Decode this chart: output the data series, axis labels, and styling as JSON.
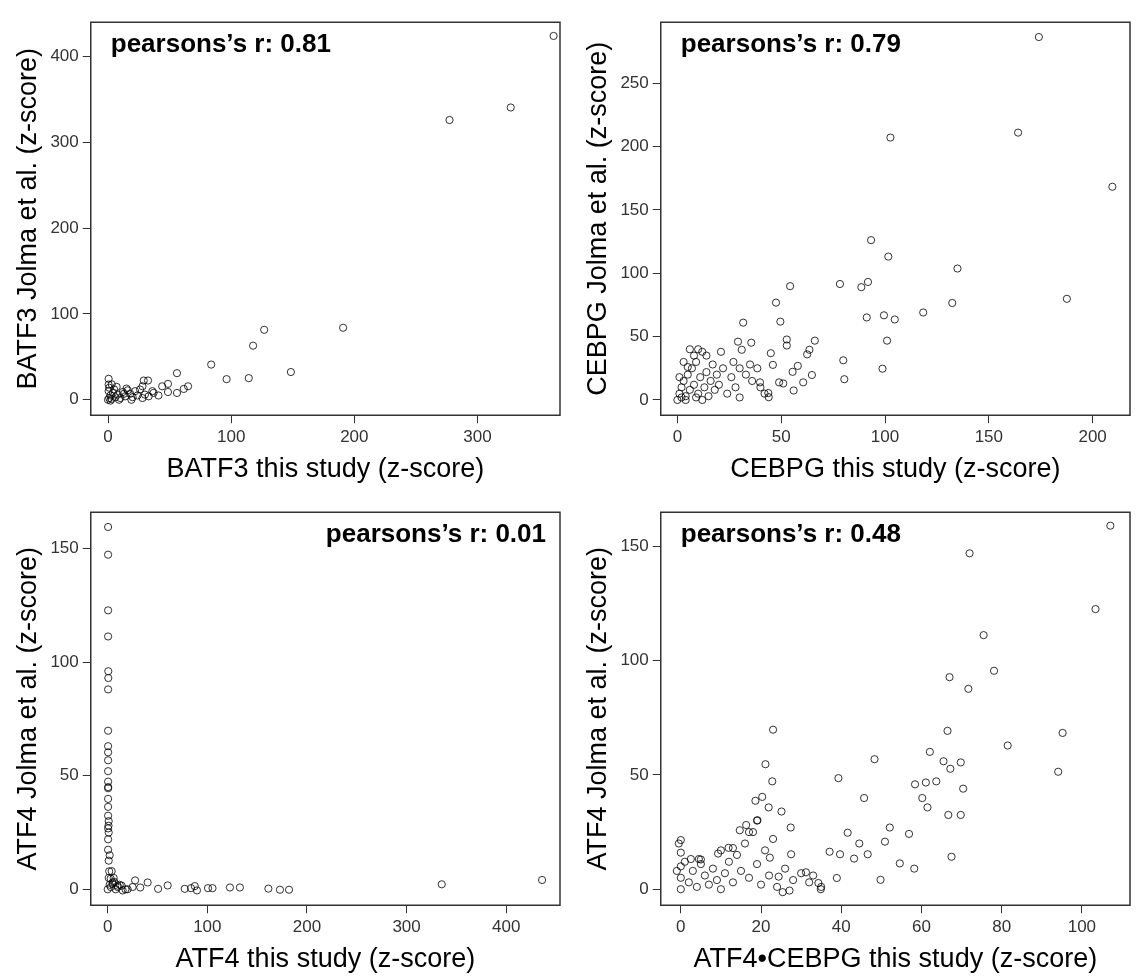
{
  "chart_data": [
    {
      "type": "scatter",
      "xlabel": "BATF3 this study (z-score)",
      "ylabel": "BATF3 Jolma et al. (z-score)",
      "annotations": [
        "pearsons’s r: 0.81"
      ],
      "xlim": [
        -14,
        367
      ],
      "ylim": [
        -18,
        440
      ],
      "xticks": [
        0,
        100,
        200,
        300
      ],
      "yticks": [
        0,
        100,
        200,
        300,
        400
      ],
      "grid": false,
      "legend": false,
      "marker": "circle",
      "series": [
        {
          "color": "#000000",
          "x": [
            361.8,
            327,
            277.3,
            190.9,
            148.5,
            126.8,
            117.8,
            114.3,
            96.3,
            83.8,
            56,
            65,
            61.5,
            56,
            48.7,
            44,
            48.7,
            41,
            37,
            32.5,
            29,
            28,
            0.5,
            0.5,
            0,
            1,
            2,
            3,
            0.5,
            1,
            4,
            6,
            8,
            10,
            12,
            14,
            16,
            18,
            20,
            22,
            24,
            26,
            15,
            5,
            9,
            19,
            28,
            30,
            33,
            36,
            3,
            7,
            13,
            2
          ],
          "values": [
            424,
            340.6,
            326,
            83.9,
            32.3,
            81.5,
            63,
            25.2,
            24,
            41,
            31,
            15.7,
            12.6,
            7.9,
            18.5,
            15.7,
            9,
            5,
            8,
            22.4,
            22.4,
            15.7,
            24.4,
            17.7,
            0,
            2,
            5,
            1,
            10,
            14,
            8,
            3,
            6,
            2,
            9,
            4,
            11,
            7,
            3,
            10,
            5,
            12,
            13,
            12,
            0,
            0,
            2,
            6,
            4,
            10,
            18,
            15,
            7,
            -1
          ]
        }
      ]
    },
    {
      "type": "scatter",
      "xlabel": "CEBPG this study (z-score)",
      "ylabel": "CEBPG Jolma et al. (z-score)",
      "annotations": [
        "pearsons’s r: 0.79"
      ],
      "xlim": [
        -8,
        218
      ],
      "ylim": [
        -12,
        298
      ],
      "xticks": [
        0,
        50,
        100,
        150,
        200
      ],
      "yticks": [
        0,
        50,
        100,
        150,
        200,
        250
      ],
      "grid": false,
      "legend": false,
      "marker": "circle",
      "series": [
        {
          "color": "#000000",
          "x": [
            174.1,
            164.1,
            102.6,
            209.5,
            93.3,
            101.6,
            134.9,
            78.3,
            91.8,
            88.6,
            54.3,
            187.6,
            132.4,
            47.5,
            118.4,
            99.5,
            91.2,
            104.7,
            49.6,
            31.7,
            101,
            66.2,
            52.7,
            52.7,
            35.6,
            29.2,
            31,
            63.6,
            62.5,
            45,
            79.9,
            98.8,
            58,
            55.5,
            46,
            64.8,
            80.4,
            60.6,
            49,
            51,
            56,
            43.8,
            44,
            38.5,
            39.8,
            0,
            1,
            2,
            3,
            1,
            4,
            5,
            6,
            7,
            8,
            9,
            10,
            11,
            12,
            13,
            14,
            15,
            16,
            17,
            18,
            19,
            20,
            22,
            24,
            26,
            28,
            30,
            3,
            6,
            9,
            12,
            4,
            2,
            14,
            21,
            27,
            30,
            33,
            36,
            40,
            42,
            35,
            10,
            8,
            5
          ],
          "values": [
            286.3,
            210.9,
            207,
            168.2,
            126.1,
            113.1,
            103.7,
            91.5,
            93.1,
            89,
            89.8,
            79.8,
            76.5,
            76.8,
            69,
            66.8,
            65.1,
            63.5,
            61.8,
            61,
            46.8,
            46.8,
            47.7,
            43,
            45.2,
            46,
            39.6,
            39.6,
            36,
            36.9,
            31.3,
            24.7,
            26.9,
            22.2,
            27.7,
            19.7,
            16.4,
            13.9,
            13.9,
            13,
            7.5,
            5.5,
            2.2,
            25,
            13.9,
            0,
            5,
            10,
            15,
            18,
            3,
            20,
            8,
            25,
            12,
            30,
            5,
            18,
            38,
            10,
            22,
            3,
            15,
            28,
            8,
            20,
            12,
            25,
            5,
            18,
            10,
            2,
            30,
            40,
            2,
            0,
            0,
            2,
            35,
            38,
            30,
            25,
            20,
            15,
            10,
            5,
            28,
            40,
            35,
            26
          ]
        }
      ]
    },
    {
      "type": "scatter",
      "xlabel": "ATF4 this study (z-score)",
      "ylabel": "ATF4 Jolma et al. (z-score)",
      "annotations": [
        "pearsons’s r: 0.01"
      ],
      "xlim": [
        -17,
        454
      ],
      "ylim": [
        -7,
        166
      ],
      "xticks": [
        0,
        100,
        200,
        300,
        400
      ],
      "yticks": [
        0,
        50,
        100,
        150
      ],
      "grid": false,
      "legend": false,
      "marker": "circle",
      "series": [
        {
          "color": "#000000",
          "x": [
            0.4,
            0.4,
            0.4,
            0.4,
            0.6,
            0.6,
            0.4,
            0.4,
            0.4,
            0.4,
            0.4,
            0.4,
            0.4,
            0.4,
            0.4,
            0.4,
            0.4,
            0.4,
            0.4,
            0.4,
            1,
            1.5,
            3,
            5,
            10,
            436,
            335.3,
            182,
            172.9,
            161.3,
            132.7,
            122.7,
            105.2,
            100.7,
            89.6,
            87.4,
            83.6,
            77.3,
            60.2,
            50.6,
            40.1,
            27.5,
            32.7,
            17.8,
            14,
            6.7,
            0,
            1,
            2,
            3,
            5,
            8,
            10,
            12,
            20,
            25,
            4,
            2,
            1,
            1,
            0.5,
            0.8,
            6,
            15
          ],
          "values": [
            159.5,
            147.3,
            122.8,
            111.3,
            96,
            93,
            88,
            69.8,
            63,
            60.3,
            56.8,
            52,
            47.4,
            44.5,
            39.8,
            36.3,
            32.4,
            26.8,
            22,
            17.4,
            12.6,
            7.9,
            4.7,
            2.4,
            1.6,
            4.1,
            2.2,
            -0.2,
            -0.2,
            0.3,
            0.8,
            0.8,
            0.5,
            0.5,
            -0.5,
            1.4,
            0.5,
            0.2,
            1.7,
            0.2,
            3,
            3.9,
            0.8,
            0,
            1.6,
            3.2,
            0,
            5,
            2,
            1,
            3,
            0,
            1,
            2,
            0,
            1,
            8,
            15,
            25,
            30,
            45,
            28,
            5,
            -0.5
          ]
        }
      ]
    },
    {
      "type": "scatter",
      "xlabel": "ATF4•CEBPG this study (z-score)",
      "ylabel": "ATF4 Jolma et al. (z-score)",
      "annotations": [
        "pearsons’s r: 0.48"
      ],
      "xlim": [
        -5,
        112
      ],
      "ylim": [
        -7,
        165
      ],
      "xticks": [
        0,
        20,
        40,
        60,
        80,
        100
      ],
      "yticks": [
        0,
        50,
        100,
        150
      ],
      "grid": false,
      "legend": false,
      "marker": "circle",
      "series": [
        {
          "color": "#000000",
          "x": [
            107.1,
            72,
            103.4,
            75.5,
            78.1,
            67,
            71.7,
            23,
            66.5,
            95.2,
            81.5,
            62.1,
            48.3,
            65.5,
            69.8,
            67.2,
            94.1,
            21.1,
            39.3,
            22.8,
            58.4,
            61.1,
            63.7,
            70.4,
            45.7,
            60.2,
            61.5,
            66.7,
            69.8,
            67.5,
            58.2,
            49.8,
            41.6,
            52.1,
            56.9,
            50.9,
            54.6,
            44.5,
            46.6,
            43.2,
            39.7,
            37.1,
            34.9,
            34.3,
            38.9,
            31.2,
            27.5,
            27.4,
            25.1,
            21.9,
            20.3,
            18.6,
            19.1,
            16.3,
            14.7,
            11.9,
            9.3,
            0,
            0,
            2.5,
            4.5,
            22.2,
            24.4,
            25.4,
            27.1,
            0,
            0,
            0,
            1,
            2,
            3,
            4,
            5,
            6,
            7,
            8,
            9,
            10,
            11,
            12,
            13,
            14,
            15,
            16,
            17,
            18,
            19,
            20,
            21,
            22,
            23,
            24,
            26,
            28,
            30,
            32,
            33,
            35,
            13,
            17,
            19,
            -0.5,
            -1,
            5,
            10
          ],
          "values": [
            159.1,
            147,
            122.6,
            111.2,
            95.6,
            92.8,
            87.7,
            69.8,
            69.3,
            68.4,
            62.9,
            60.1,
            56.9,
            56,
            55.5,
            52.7,
            51.4,
            54.7,
            48.6,
            47.2,
            45.9,
            46.7,
            47.2,
            44,
            39.9,
            39.9,
            35.8,
            32.5,
            32.5,
            14.2,
            9,
            4.1,
            24.7,
            27,
            24.2,
            20.8,
            11.3,
            20,
            15.3,
            13.4,
            15.3,
            16.4,
            0,
            2.7,
            4.9,
            7.4,
            15.3,
            27,
            34,
            35.8,
            40.4,
            38.7,
            30.2,
            28.1,
            25.8,
            18.1,
            15.6,
            21.5,
            16,
            13.2,
            13.2,
            13.8,
            5.5,
            -1.3,
            -0.6,
            0,
            5,
            10,
            12,
            3,
            8,
            1,
            11,
            6,
            2,
            9,
            4,
            0,
            7,
            12,
            3,
            15,
            8,
            20,
            5,
            25,
            11,
            2,
            17,
            6,
            22,
            1,
            9,
            4,
            7,
            3,
            6,
            1,
            18,
            25,
            30,
            20,
            8,
            13,
            17
          ]
        }
      ]
    }
  ]
}
